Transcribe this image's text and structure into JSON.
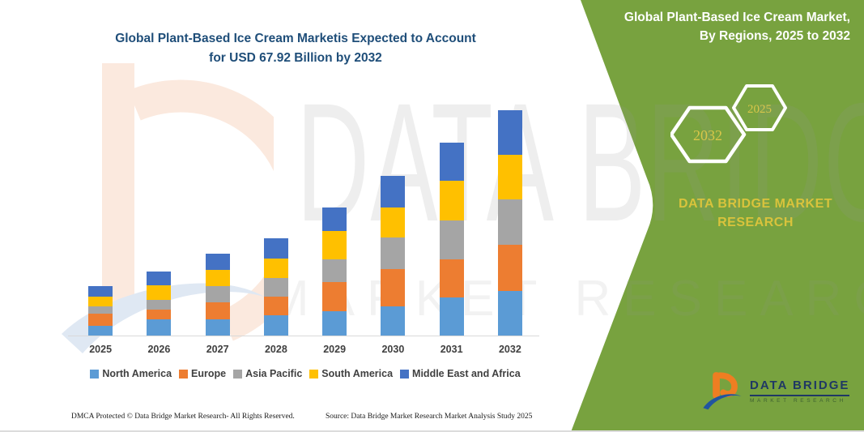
{
  "header": {
    "title_line1": "Global Plant-Based Ice Cream Marketis Expected to Account",
    "title_line2": "for USD 67.92 Billion by 2032"
  },
  "side_panel": {
    "title_line1": "Global Plant-Based Ice Cream Market,",
    "title_line2": "By Regions, 2025 to 2032",
    "hexagon_end_year": "2032",
    "hexagon_start_year": "2025",
    "brand_line1": "DATA BRIDGE MARKET",
    "brand_line2": "RESEARCH",
    "panel_color": "#78A23F",
    "accent_yellow": "#D9C64A"
  },
  "watermark": {
    "line1": "DATA BRIDGE",
    "line2": "MARKET RESEARCH"
  },
  "logo": {
    "name_text": "DATA BRIDGE",
    "sub_text": "MARKET RESEARCH"
  },
  "footer": {
    "left": "DMCA Protected © Data Bridge Market Research- All Rights Reserved.",
    "right": "Source: Data Bridge Market Research  Market Analysis Study 2025"
  },
  "chart_data": {
    "type": "bar",
    "stacked": true,
    "title": "Global Plant-Based Ice Cream Market, By Regions, 2025 to 2032",
    "unit": "USD Billion",
    "categories": [
      "2025",
      "2026",
      "2027",
      "2028",
      "2029",
      "2030",
      "2031",
      "2032"
    ],
    "series": [
      {
        "name": "North America",
        "color": "#5B9BD5",
        "values": [
          3.0,
          4.9,
          5.0,
          6.1,
          7.4,
          8.9,
          11.4,
          13.4
        ]
      },
      {
        "name": "Europe",
        "color": "#ED7D31",
        "values": [
          3.7,
          2.9,
          5.0,
          5.7,
          8.7,
          11.2,
          11.6,
          13.9
        ]
      },
      {
        "name": "Asia Pacific",
        "color": "#A5A5A5",
        "values": [
          2.2,
          2.9,
          4.9,
          5.6,
          7.0,
          9.4,
          11.7,
          13.7
        ]
      },
      {
        "name": "South America",
        "color": "#FFC000",
        "values": [
          2.9,
          4.5,
          5.0,
          5.9,
          8.4,
          9.2,
          11.9,
          13.52
        ]
      },
      {
        "name": "Middle East and Africa",
        "color": "#4472C4",
        "values": [
          3.1,
          4.1,
          4.9,
          6.1,
          7.2,
          9.4,
          11.5,
          13.4
        ]
      }
    ],
    "totals": [
      14.9,
      19.3,
      24.8,
      29.4,
      38.7,
      48.1,
      58.1,
      67.92
    ],
    "ylim": [
      0,
      70
    ],
    "grid": false,
    "legend_position": "bottom",
    "xlabel": "",
    "ylabel": ""
  }
}
